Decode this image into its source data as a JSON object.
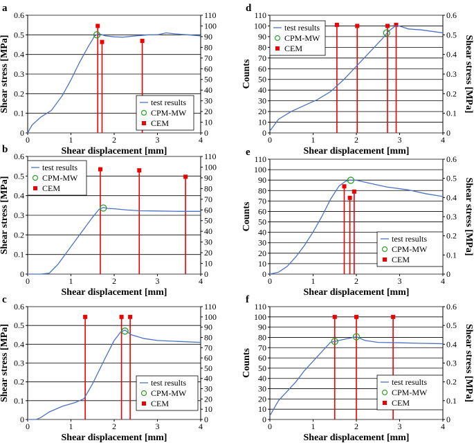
{
  "chart_data": [
    {
      "panel": "a",
      "type": "line",
      "xlabel": "Shear displacement [mm]",
      "ylabel_left": "Shear stress [MPa]",
      "ylabel_right": "",
      "primary_axis": "left",
      "xlim": [
        0,
        4
      ],
      "xticks": [
        "0",
        "1",
        "2",
        "3",
        "4"
      ],
      "ylim_left": [
        0,
        0.6
      ],
      "yticks_left": [
        "0",
        "0.1",
        "0.2",
        "0.3",
        "0.4",
        "0.5",
        "0.6"
      ],
      "ylim_right": [
        0,
        110
      ],
      "yticks_right": [
        "0",
        "10",
        "20",
        "30",
        "40",
        "50",
        "60",
        "70",
        "80",
        "90",
        "100",
        "110"
      ],
      "series": [
        {
          "name": "test results",
          "x": [
            0,
            0.1,
            0.3,
            0.55,
            0.8,
            1.0,
            1.2,
            1.4,
            1.55,
            1.65,
            1.8,
            2.0,
            2.2,
            2.5,
            2.8,
            3.0,
            3.2,
            3.4,
            3.7,
            4.0
          ],
          "y": [
            0,
            0.04,
            0.08,
            0.115,
            0.19,
            0.27,
            0.36,
            0.44,
            0.495,
            0.505,
            0.495,
            0.49,
            0.488,
            0.495,
            0.5,
            0.5,
            0.51,
            0.505,
            0.5,
            0.495
          ]
        }
      ],
      "cpm_mw": {
        "x": 1.6,
        "y": 0.5
      },
      "cem": {
        "x": [
          1.62,
          1.72,
          2.65
        ],
        "counts": [
          100,
          85,
          86
        ]
      },
      "legend": {
        "line": "test results",
        "circle": "CPM-MW",
        "square": "CEM",
        "position": "lower-right"
      }
    },
    {
      "panel": "b",
      "type": "line",
      "xlabel": "Shear displacement [mm]",
      "ylabel_left": "Shear stress [MPa]",
      "ylabel_right": "",
      "primary_axis": "left",
      "xlim": [
        0,
        4
      ],
      "xticks": [
        "0",
        "1",
        "2",
        "3",
        "4"
      ],
      "ylim_left": [
        0,
        0.6
      ],
      "yticks_left": [
        "0",
        "0.1",
        "0.2",
        "0.3",
        "0.4",
        "0.5",
        "0.6"
      ],
      "ylim_right": [
        0,
        110
      ],
      "yticks_right": [
        "0",
        "10",
        "20",
        "30",
        "40",
        "50",
        "60",
        "70",
        "80",
        "90",
        "100",
        "110"
      ],
      "series": [
        {
          "name": "test results",
          "x": [
            0,
            0.3,
            0.5,
            0.7,
            0.9,
            1.1,
            1.3,
            1.5,
            1.65,
            1.75,
            1.85,
            2.0,
            2.3,
            2.6,
            3.0,
            3.5,
            4.0
          ],
          "y": [
            0,
            0.0,
            0.005,
            0.05,
            0.11,
            0.17,
            0.23,
            0.29,
            0.33,
            0.34,
            0.335,
            0.333,
            0.327,
            0.323,
            0.322,
            0.32,
            0.32
          ]
        }
      ],
      "cpm_mw": {
        "x": 1.75,
        "y": 0.337
      },
      "cem": {
        "x": [
          1.68,
          2.58,
          3.65
        ],
        "counts": [
          98,
          97,
          91
        ]
      },
      "legend": {
        "line": "test results",
        "circle": "CPM-MW",
        "square": "CEM",
        "position": "top-left"
      }
    },
    {
      "panel": "c",
      "type": "line",
      "xlabel": "Shear displacement [mm]",
      "ylabel_left": "Shear stress [MPa]",
      "ylabel_right": "",
      "primary_axis": "left",
      "xlim": [
        0,
        4
      ],
      "xticks": [
        "0",
        "1",
        "2",
        "3",
        "4"
      ],
      "ylim_left": [
        0,
        0.6
      ],
      "yticks_left": [
        "0",
        "0.1",
        "0.2",
        "0.3",
        "0.4",
        "0.5",
        "0.6"
      ],
      "ylim_right": [
        0,
        110
      ],
      "yticks_right": [
        "0",
        "10",
        "20",
        "30",
        "40",
        "50",
        "60",
        "70",
        "80",
        "90",
        "100",
        "110"
      ],
      "series": [
        {
          "name": "test results",
          "x": [
            0,
            0.2,
            0.3,
            0.5,
            0.8,
            1.1,
            1.3,
            1.5,
            1.8,
            2.0,
            2.15,
            2.25,
            2.4,
            2.7,
            3.0,
            3.5,
            4.0
          ],
          "y": [
            0,
            0.0,
            0.01,
            0.04,
            0.07,
            0.09,
            0.11,
            0.19,
            0.33,
            0.42,
            0.465,
            0.475,
            0.45,
            0.43,
            0.42,
            0.415,
            0.41
          ]
        }
      ],
      "cpm_mw": {
        "x": 2.25,
        "y": 0.47
      },
      "cem": {
        "x": [
          1.33,
          2.17,
          2.37
        ],
        "counts": [
          100,
          100,
          100
        ]
      },
      "legend": {
        "line": "test results",
        "circle": "CPM-MW",
        "square": "CEM",
        "position": "lower-right"
      }
    },
    {
      "panel": "d",
      "type": "line",
      "xlabel": "Shear displacement [mm]",
      "ylabel_left": "Counts",
      "ylabel_right": "Shear stress [MPa]",
      "primary_axis": "right",
      "xlim": [
        0,
        4
      ],
      "xticks": [
        "0",
        "1",
        "2",
        "3",
        "4"
      ],
      "ylim_left": [
        0,
        110
      ],
      "yticks_left": [
        "0",
        "10",
        "20",
        "30",
        "40",
        "50",
        "60",
        "70",
        "80",
        "90",
        "100",
        "110"
      ],
      "ylim_right": [
        0,
        0.6
      ],
      "yticks_right": [
        "0",
        "0.1",
        "0.2",
        "0.3",
        "0.4",
        "0.5",
        "0.6"
      ],
      "series": [
        {
          "name": "test results",
          "x": [
            0,
            0.2,
            0.5,
            0.8,
            1.1,
            1.4,
            1.7,
            2.0,
            2.3,
            2.6,
            2.75,
            2.9,
            3.0,
            3.2,
            3.5,
            4.0
          ],
          "y": [
            0.01,
            0.07,
            0.11,
            0.14,
            0.17,
            0.21,
            0.27,
            0.34,
            0.41,
            0.48,
            0.52,
            0.545,
            0.545,
            0.53,
            0.525,
            0.51
          ]
        }
      ],
      "cpm_mw": {
        "x": 2.7,
        "y": 0.51
      },
      "cem": {
        "x": [
          1.55,
          2.02,
          2.72,
          2.92
        ],
        "counts": [
          101,
          100,
          100,
          101
        ]
      },
      "legend": {
        "line": "test results",
        "circle": "CPM-MW",
        "square": "CEM",
        "position": "top-left"
      }
    },
    {
      "panel": "e",
      "type": "line",
      "xlabel": "Shear displacement [mm]",
      "ylabel_left": "Counts",
      "ylabel_right": "Shear stress [MPa]",
      "primary_axis": "right",
      "xlim": [
        0,
        4
      ],
      "xticks": [
        "0",
        "1",
        "2",
        "3",
        "4"
      ],
      "ylim_left": [
        0,
        110
      ],
      "yticks_left": [
        "0",
        "10",
        "20",
        "30",
        "40",
        "50",
        "60",
        "70",
        "80",
        "90",
        "100",
        "110"
      ],
      "ylim_right": [
        0,
        0.6
      ],
      "yticks_right": [
        "0",
        "0.1",
        "0.2",
        "0.3",
        "0.4",
        "0.5",
        "0.6"
      ],
      "series": [
        {
          "name": "test results",
          "x": [
            0,
            0.2,
            0.4,
            0.6,
            0.8,
            1.0,
            1.2,
            1.4,
            1.6,
            1.75,
            1.85,
            2.0,
            2.3,
            2.7,
            3.2,
            3.6,
            4.0
          ],
          "y": [
            0,
            0.01,
            0.04,
            0.09,
            0.15,
            0.22,
            0.3,
            0.39,
            0.46,
            0.485,
            0.49,
            0.49,
            0.475,
            0.455,
            0.44,
            0.42,
            0.405
          ]
        }
      ],
      "cpm_mw": {
        "x": 1.87,
        "y": 0.49
      },
      "cem": {
        "x": [
          1.72,
          1.85,
          1.95
        ],
        "counts": [
          84,
          73,
          79
        ]
      },
      "legend": {
        "line": "test results",
        "circle": "CPM-MW",
        "square": "CEM",
        "position": "lower-right"
      }
    },
    {
      "panel": "f",
      "type": "line",
      "xlabel": "Shear displacement [mm]",
      "ylabel_left": "Counts",
      "ylabel_right": "Shear stress [MPa]",
      "primary_axis": "right",
      "xlim": [
        0,
        4
      ],
      "xticks": [
        "0",
        "1",
        "2",
        "3",
        "4"
      ],
      "ylim_left": [
        0,
        110
      ],
      "yticks_left": [
        "0",
        "10",
        "20",
        "30",
        "40",
        "50",
        "60",
        "70",
        "80",
        "90",
        "100",
        "110"
      ],
      "ylim_right": [
        0,
        0.6
      ],
      "yticks_right": [
        "0",
        "0.1",
        "0.2",
        "0.3",
        "0.4",
        "0.5",
        "0.6"
      ],
      "series": [
        {
          "name": "test results",
          "x": [
            0,
            0.2,
            0.4,
            0.6,
            0.8,
            1.0,
            1.2,
            1.4,
            1.5,
            1.7,
            2.0,
            2.2,
            2.5,
            3.0,
            3.5,
            4.0
          ],
          "y": [
            0.02,
            0.1,
            0.15,
            0.2,
            0.26,
            0.31,
            0.36,
            0.41,
            0.415,
            0.425,
            0.44,
            0.42,
            0.41,
            0.408,
            0.405,
            0.403
          ]
        }
      ],
      "cpm_mw": [
        {
          "x": 1.5,
          "y": 0.415
        },
        {
          "x": 2.0,
          "y": 0.44
        }
      ],
      "cem": {
        "x": [
          1.5,
          2.0,
          2.85
        ],
        "counts": [
          100,
          100,
          100
        ]
      },
      "legend": {
        "line": "test results",
        "circle": "CPM-MW",
        "square": "CEM",
        "position": "lower-right"
      }
    }
  ]
}
